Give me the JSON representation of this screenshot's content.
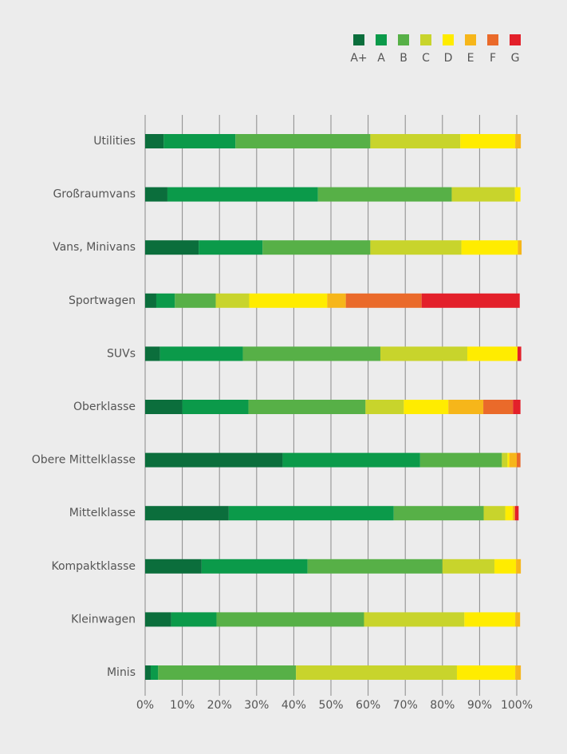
{
  "chart_data": {
    "type": "stacked-barh",
    "categories": [
      "Utilities",
      "Großraumvans",
      "Vans, Minivans",
      "Sportwagen",
      "SUVs",
      "Oberklasse",
      "Obere Mittelklasse",
      "Mittelklasse",
      "Kompaktklasse",
      "Kleinwagen",
      "Minis"
    ],
    "series": [
      {
        "name": "A+",
        "color": "#0b6e3c",
        "values": [
          5,
          6,
          14.4,
          3,
          4,
          10,
          37,
          22.5,
          15.2,
          7,
          1.5
        ]
      },
      {
        "name": "A",
        "color": "#0b9a4a",
        "values": [
          19.3,
          40.5,
          17.2,
          5,
          22.3,
          17.8,
          37,
          44.4,
          28.5,
          12.2,
          2
        ]
      },
      {
        "name": "B",
        "color": "#57b047",
        "values": [
          36.3,
          36,
          29,
          11,
          37,
          31.5,
          22,
          24.2,
          36.3,
          39.7,
          37.1
        ]
      },
      {
        "name": "C",
        "color": "#c8d42c",
        "values": [
          24.2,
          17,
          24.5,
          9,
          23.4,
          10.3,
          1.5,
          5.8,
          14,
          27,
          43.3
        ]
      },
      {
        "name": "D",
        "color": "#ffec00",
        "values": [
          14.8,
          1.5,
          15.2,
          21,
          13.5,
          12,
          0.5,
          2,
          5.8,
          13.7,
          15.7
        ]
      },
      {
        "name": "E",
        "color": "#f6b61a",
        "values": [
          1.5,
          0,
          1,
          5,
          0,
          9.4,
          2,
          0.6,
          1.3,
          1.3,
          1.5
        ]
      },
      {
        "name": "F",
        "color": "#ea6a2a",
        "values": [
          0,
          0,
          0,
          20.4,
          0,
          8,
          1,
          0,
          0,
          0,
          0
        ]
      },
      {
        "name": "G",
        "color": "#e3202a",
        "values": [
          0,
          0,
          0,
          26.4,
          1,
          2,
          0,
          1,
          0,
          0,
          0
        ]
      }
    ],
    "xlim": [
      0,
      100
    ],
    "xticks": [
      {
        "value": 0,
        "label": "0%"
      },
      {
        "value": 10,
        "label": "10%"
      },
      {
        "value": 20,
        "label": "20%"
      },
      {
        "value": 30,
        "label": "30%"
      },
      {
        "value": 40,
        "label": "40%"
      },
      {
        "value": 50,
        "label": "50%"
      },
      {
        "value": 60,
        "label": "60%"
      },
      {
        "value": 70,
        "label": "70%"
      },
      {
        "value": 80,
        "label": "80%"
      },
      {
        "value": 90,
        "label": "90%"
      },
      {
        "value": 100,
        "label": "100%"
      }
    ],
    "grid": true,
    "legend": "top-right"
  }
}
